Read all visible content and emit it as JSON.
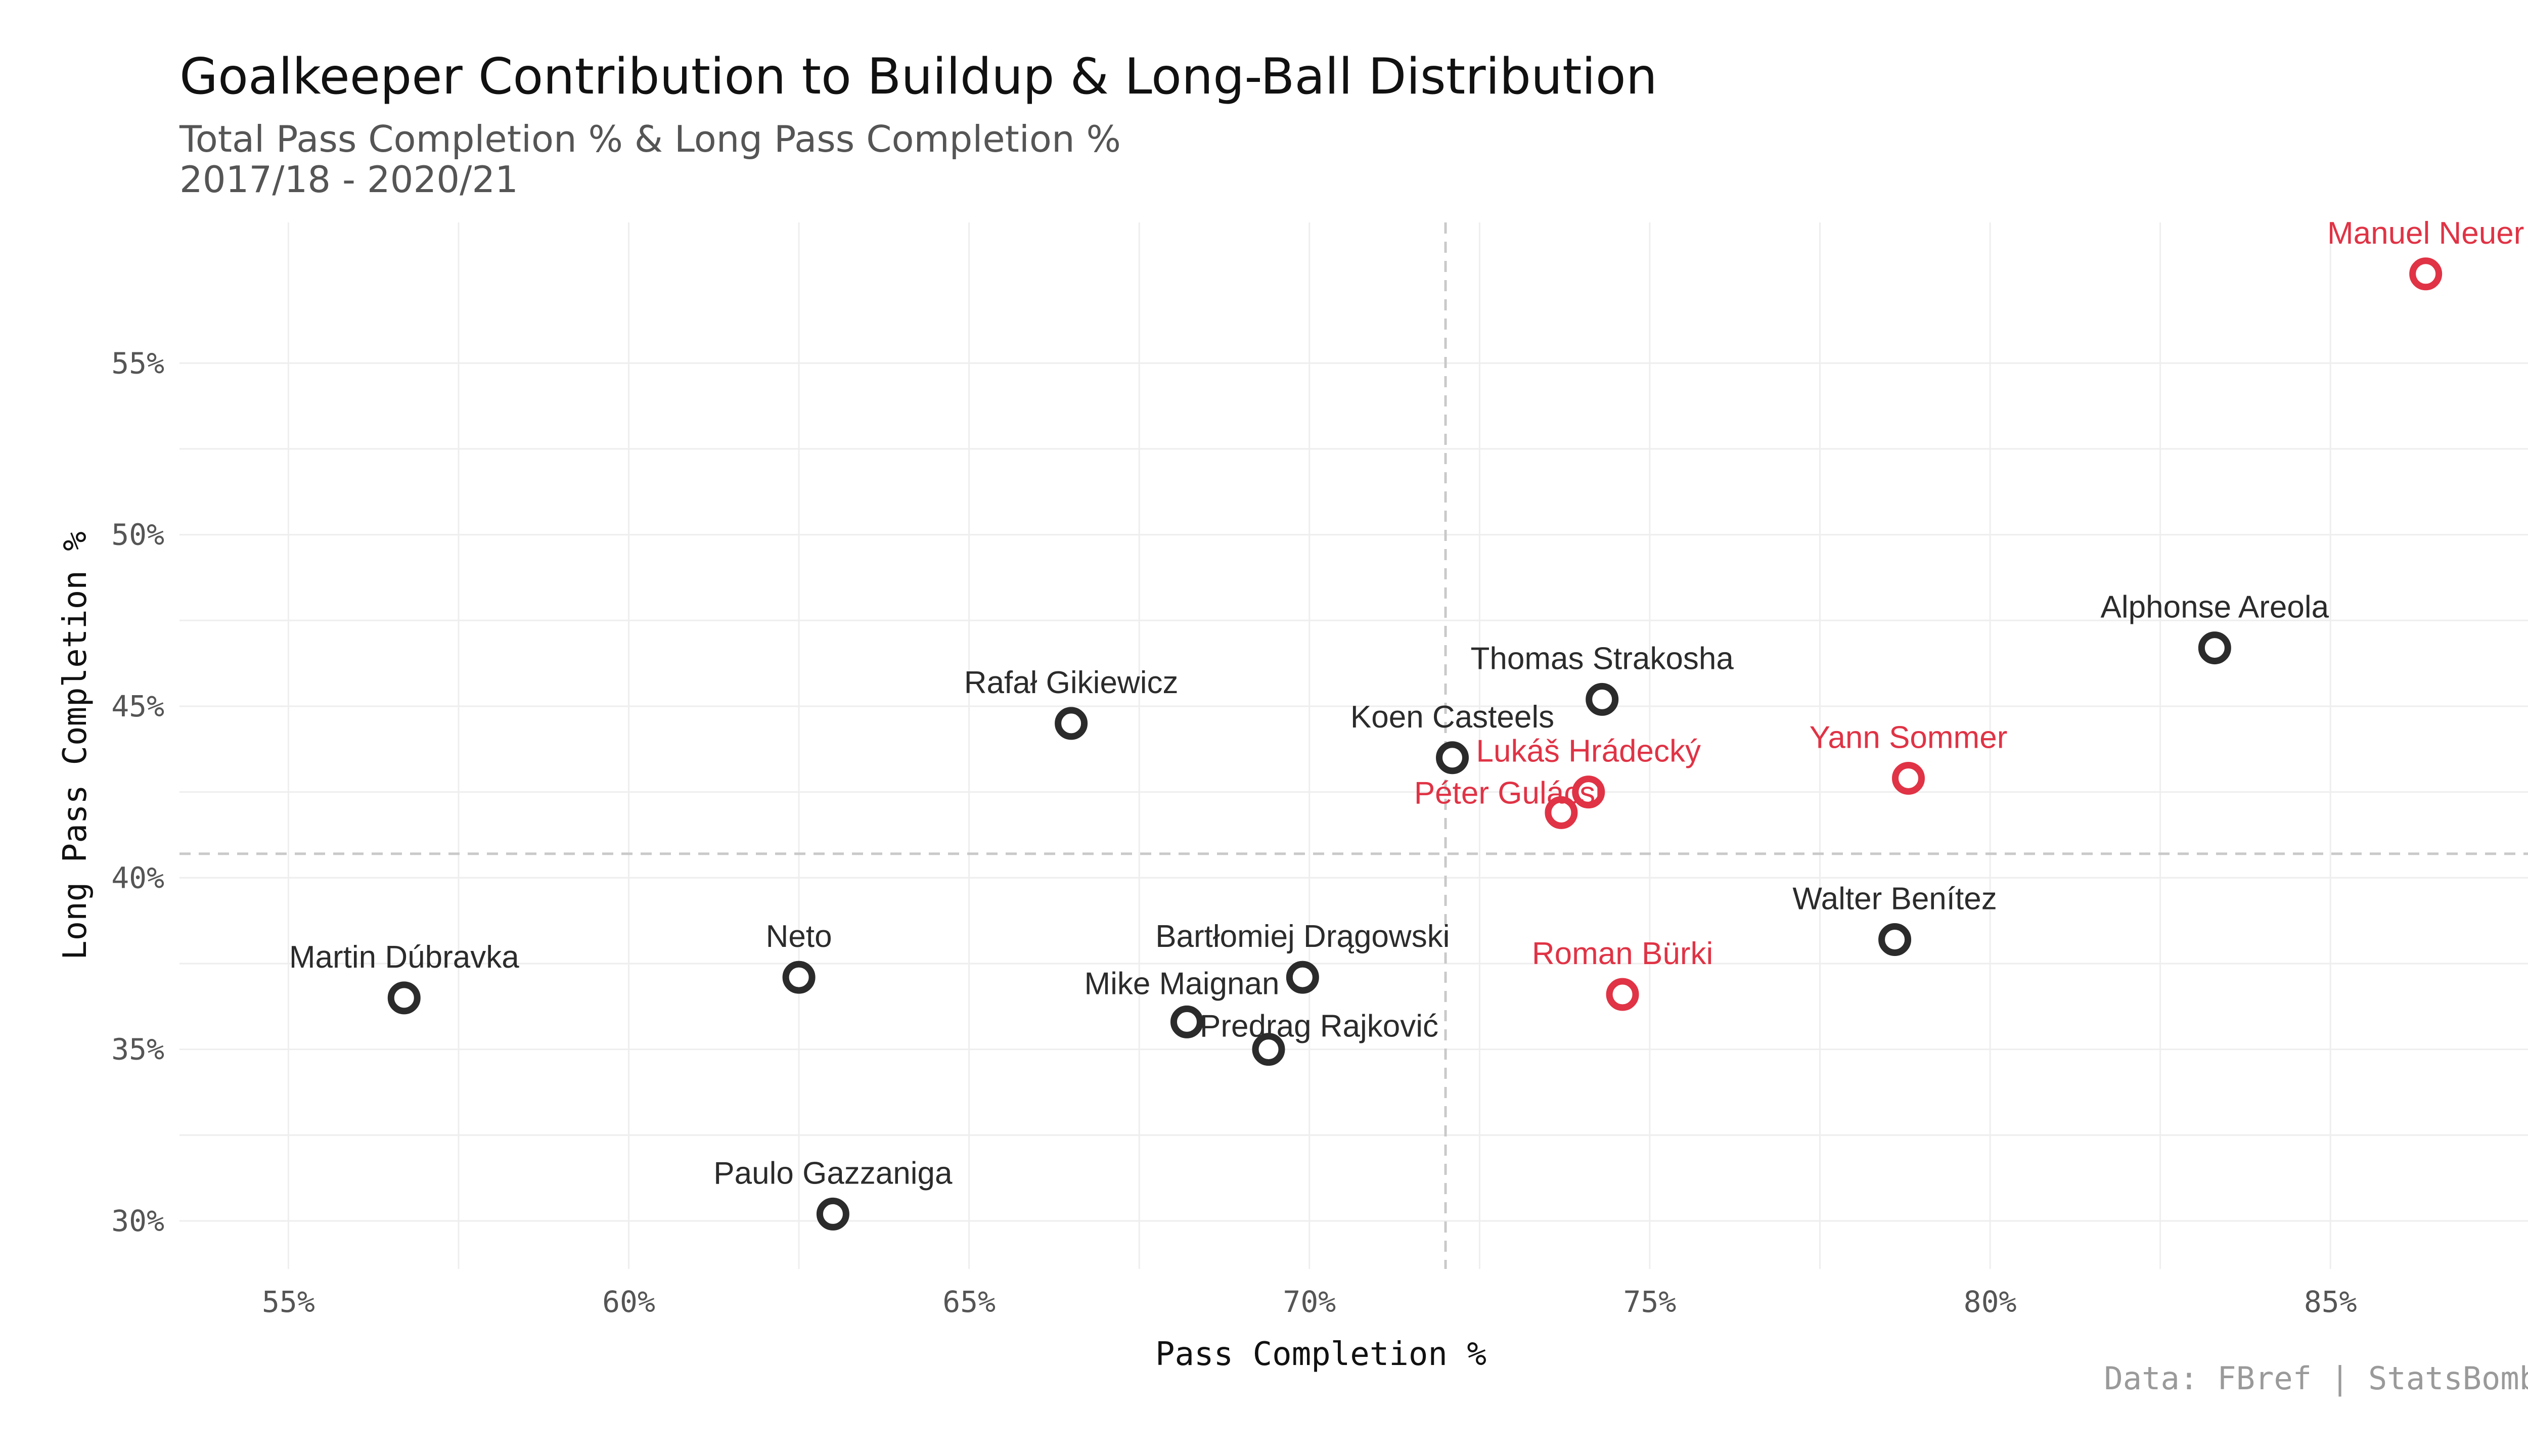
{
  "title": "Goalkeeper Contribution to Buildup & Long-Ball Distribution",
  "subtitle_line1": "Total Pass Completion % & Long Pass Completion %",
  "subtitle_line2": "2017/18 - 2020/21",
  "caption": "Data: FBref | StatsBomb",
  "colors": {
    "highlight": "#e03345",
    "default": "#2b2b2b"
  },
  "chart_data": {
    "type": "scatter",
    "title": "Goalkeeper Contribution to Buildup & Long-Ball Distribution",
    "xlabel": "Pass Completion %",
    "ylabel": "Long Pass Completion %",
    "xlim": [
      53.4,
      88.2
    ],
    "ylim": [
      28.6,
      59.1
    ],
    "x_ticks": [
      55,
      60,
      65,
      70,
      75,
      80,
      85
    ],
    "x_tick_labels": [
      "55%",
      "60%",
      "65%",
      "70%",
      "75%",
      "80%",
      "85%"
    ],
    "y_ticks": [
      30,
      35,
      40,
      45,
      50,
      55
    ],
    "y_tick_labels": [
      "30%",
      "35%",
      "40%",
      "45%",
      "50%",
      "55%"
    ],
    "x_reference": 72.0,
    "y_reference": 40.7,
    "grid": true,
    "points": [
      {
        "name": "Manuel Neuer",
        "x": 86.4,
        "y": 57.6,
        "highlight": true
      },
      {
        "name": "Alphonse Areola",
        "x": 83.3,
        "y": 46.7,
        "highlight": false
      },
      {
        "name": "Thomas Strakosha",
        "x": 74.3,
        "y": 45.2,
        "highlight": false
      },
      {
        "name": "Rafał Gikiewicz",
        "x": 66.5,
        "y": 44.5,
        "highlight": false
      },
      {
        "name": "Koen Casteels",
        "x": 72.1,
        "y": 43.5,
        "highlight": false
      },
      {
        "name": "Yann Sommer",
        "x": 78.8,
        "y": 42.9,
        "highlight": true
      },
      {
        "name": "Lukáš Hrádecký",
        "x": 74.1,
        "y": 42.5,
        "highlight": true
      },
      {
        "name": "Péter Gulácsi",
        "x": 73.7,
        "y": 41.9,
        "highlight": true
      },
      {
        "name": "Walter Benítez",
        "x": 78.6,
        "y": 38.2,
        "highlight": false
      },
      {
        "name": "Bartłomiej Drągowski",
        "x": 69.9,
        "y": 37.1,
        "highlight": false
      },
      {
        "name": "Neto",
        "x": 62.5,
        "y": 37.1,
        "highlight": false
      },
      {
        "name": "Roman Bürki",
        "x": 74.6,
        "y": 36.6,
        "highlight": true
      },
      {
        "name": "Martin Dúbravka",
        "x": 56.7,
        "y": 36.5,
        "highlight": false
      },
      {
        "name": "Mike Maignan",
        "x": 68.2,
        "y": 35.8,
        "highlight": false
      },
      {
        "name": "Predrag Rajković",
        "x": 69.4,
        "y": 35.0,
        "highlight": false
      },
      {
        "name": "Paulo Gazzaniga",
        "x": 63.0,
        "y": 30.2,
        "highlight": false
      }
    ]
  }
}
